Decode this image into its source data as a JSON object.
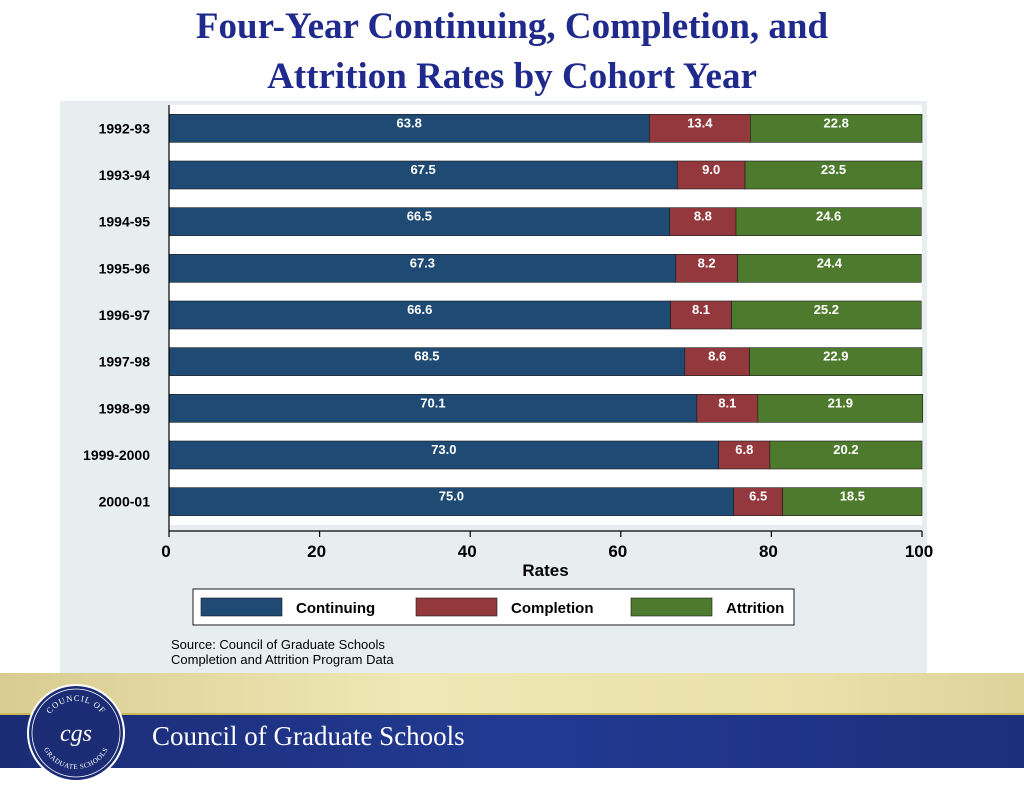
{
  "title": "Four-Year Continuing, Completion, and Attrition Rates by Cohort Year",
  "title_lines": [
    "Four-Year Continuing, Completion, and",
    "Attrition Rates by Cohort Year"
  ],
  "chart_data": {
    "type": "bar",
    "orientation": "horizontal",
    "stacked": true,
    "categories": [
      "1992-93",
      "1993-94",
      "1994-95",
      "1995-96",
      "1996-97",
      "1997-98",
      "1998-99",
      "1999-2000",
      "2000-01"
    ],
    "series": [
      {
        "name": "Continuing",
        "color": "#1f4a73",
        "values": [
          63.8,
          67.5,
          66.5,
          67.3,
          66.6,
          68.5,
          70.1,
          73.0,
          75.0
        ]
      },
      {
        "name": "Completion",
        "color": "#93393d",
        "values": [
          13.4,
          9.0,
          8.8,
          8.2,
          8.1,
          8.6,
          8.1,
          6.8,
          6.5
        ]
      },
      {
        "name": "Attrition",
        "color": "#4e7a2e",
        "values": [
          22.8,
          23.5,
          24.6,
          24.4,
          25.2,
          22.9,
          21.9,
          20.2,
          18.5
        ]
      }
    ],
    "value_labels": [
      [
        "63.8",
        "67.5",
        "66.5",
        "67.3",
        "66.6",
        "68.5",
        "70.1",
        "73.0",
        "75.0"
      ],
      [
        "13.4",
        "9.0",
        "8.8",
        "8.2",
        "8.1",
        "8.6",
        "8.1",
        "6.8",
        "6.5"
      ],
      [
        "22.8",
        "23.5",
        "24.6",
        "24.4",
        "25.2",
        "22.9",
        "21.9",
        "20.2",
        "18.5"
      ]
    ],
    "xlabel": "Rates",
    "xlim": [
      0,
      100
    ],
    "xticks": [
      0,
      20,
      40,
      60,
      80,
      100
    ],
    "grid": false,
    "legend_position": "bottom"
  },
  "source_note": [
    "Source: Council of Graduate Schools",
    "Completion and Attrition Program Data"
  ],
  "footer": {
    "org_name": "Council of Graduate Schools",
    "logo_text_top": "COUNCIL OF",
    "logo_text_mid": "cgs",
    "logo_text_bottom": "GRADUATE SCHOOLS"
  }
}
